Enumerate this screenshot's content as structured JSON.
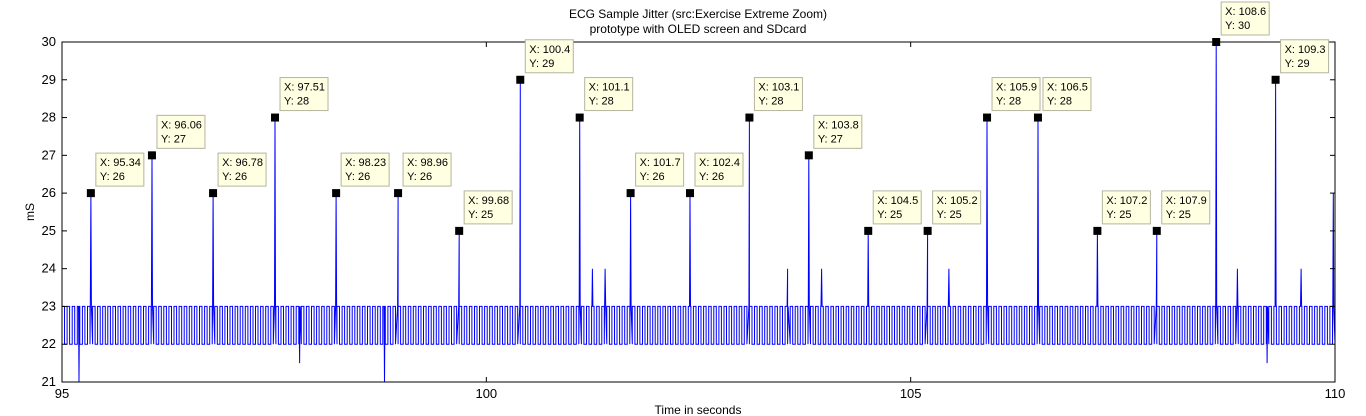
{
  "chart_data": {
    "type": "line",
    "title": "ECG Sample Jitter (src:Exercise Extreme Zoom)",
    "subtitle": "prototype with OLED screen and SDcard",
    "xlabel": "Time in seconds",
    "ylabel": "mS",
    "xlim": [
      95,
      110
    ],
    "ylim": [
      21,
      30
    ],
    "x_ticks": [
      95,
      100,
      105,
      110
    ],
    "y_ticks": [
      21,
      22,
      23,
      24,
      25,
      26,
      27,
      28,
      29,
      30
    ],
    "grid": false,
    "series_color": "#0000ff",
    "baseline": {
      "low": 22,
      "high": 23,
      "period_s": 0.06
    },
    "peaks": [
      {
        "x": 95.34,
        "y": 26
      },
      {
        "x": 96.06,
        "y": 27
      },
      {
        "x": 96.78,
        "y": 26
      },
      {
        "x": 97.51,
        "y": 28
      },
      {
        "x": 98.23,
        "y": 26
      },
      {
        "x": 98.96,
        "y": 26
      },
      {
        "x": 99.68,
        "y": 25
      },
      {
        "x": 100.4,
        "y": 29
      },
      {
        "x": 101.1,
        "y": 28
      },
      {
        "x": 101.7,
        "y": 26
      },
      {
        "x": 102.4,
        "y": 26
      },
      {
        "x": 103.1,
        "y": 28
      },
      {
        "x": 103.8,
        "y": 27
      },
      {
        "x": 104.5,
        "y": 25
      },
      {
        "x": 105.2,
        "y": 25
      },
      {
        "x": 105.9,
        "y": 28
      },
      {
        "x": 106.5,
        "y": 28
      },
      {
        "x": 107.2,
        "y": 25
      },
      {
        "x": 107.9,
        "y": 25
      },
      {
        "x": 108.6,
        "y": 30
      },
      {
        "x": 109.3,
        "y": 29
      }
    ],
    "secondary_spikes": [
      {
        "x": 101.25,
        "y": 24
      },
      {
        "x": 101.4,
        "y": 24
      },
      {
        "x": 103.55,
        "y": 24
      },
      {
        "x": 103.95,
        "y": 24
      },
      {
        "x": 105.45,
        "y": 24
      },
      {
        "x": 108.85,
        "y": 24
      },
      {
        "x": 109.6,
        "y": 24
      },
      {
        "x": 109.98,
        "y": 26
      }
    ],
    "dips": [
      {
        "x": 95.2,
        "y": 21
      },
      {
        "x": 97.8,
        "y": 21.5
      },
      {
        "x": 98.8,
        "y": 21
      },
      {
        "x": 109.2,
        "y": 21.5
      }
    ],
    "datatips": [
      {
        "x_label": "X: 95.34",
        "y_label": "Y: 26"
      },
      {
        "x_label": "X: 96.06",
        "y_label": "Y: 27"
      },
      {
        "x_label": "X: 96.78",
        "y_label": "Y: 26"
      },
      {
        "x_label": "X: 97.51",
        "y_label": "Y: 28"
      },
      {
        "x_label": "X: 98.23",
        "y_label": "Y: 26"
      },
      {
        "x_label": "X: 98.96",
        "y_label": "Y: 26"
      },
      {
        "x_label": "X: 99.68",
        "y_label": "Y: 25"
      },
      {
        "x_label": "X: 100.4",
        "y_label": "Y: 29"
      },
      {
        "x_label": "X: 101.1",
        "y_label": "Y: 28"
      },
      {
        "x_label": "X: 101.7",
        "y_label": "Y: 26"
      },
      {
        "x_label": "X: 102.4",
        "y_label": "Y: 26"
      },
      {
        "x_label": "X: 103.1",
        "y_label": "Y: 28"
      },
      {
        "x_label": "X: 103.8",
        "y_label": "Y: 27"
      },
      {
        "x_label": "X: 104.5",
        "y_label": "Y: 25"
      },
      {
        "x_label": "X: 105.2",
        "y_label": "Y: 25"
      },
      {
        "x_label": "X: 105.9",
        "y_label": "Y: 28"
      },
      {
        "x_label": "X: 106.5",
        "y_label": "Y: 28"
      },
      {
        "x_label": "X: 107.2",
        "y_label": "Y: 25"
      },
      {
        "x_label": "X: 107.9",
        "y_label": "Y: 25"
      },
      {
        "x_label": "X: 108.6",
        "y_label": "Y: 30"
      },
      {
        "x_label": "X: 109.3",
        "y_label": "Y: 29"
      }
    ]
  },
  "colors": {
    "line": "#0000ff",
    "datatip_bg": "#ffffe1",
    "datatip_border": "#b4b4a0",
    "marker": "#000000",
    "axes": "#000000",
    "background": "#ffffff"
  }
}
